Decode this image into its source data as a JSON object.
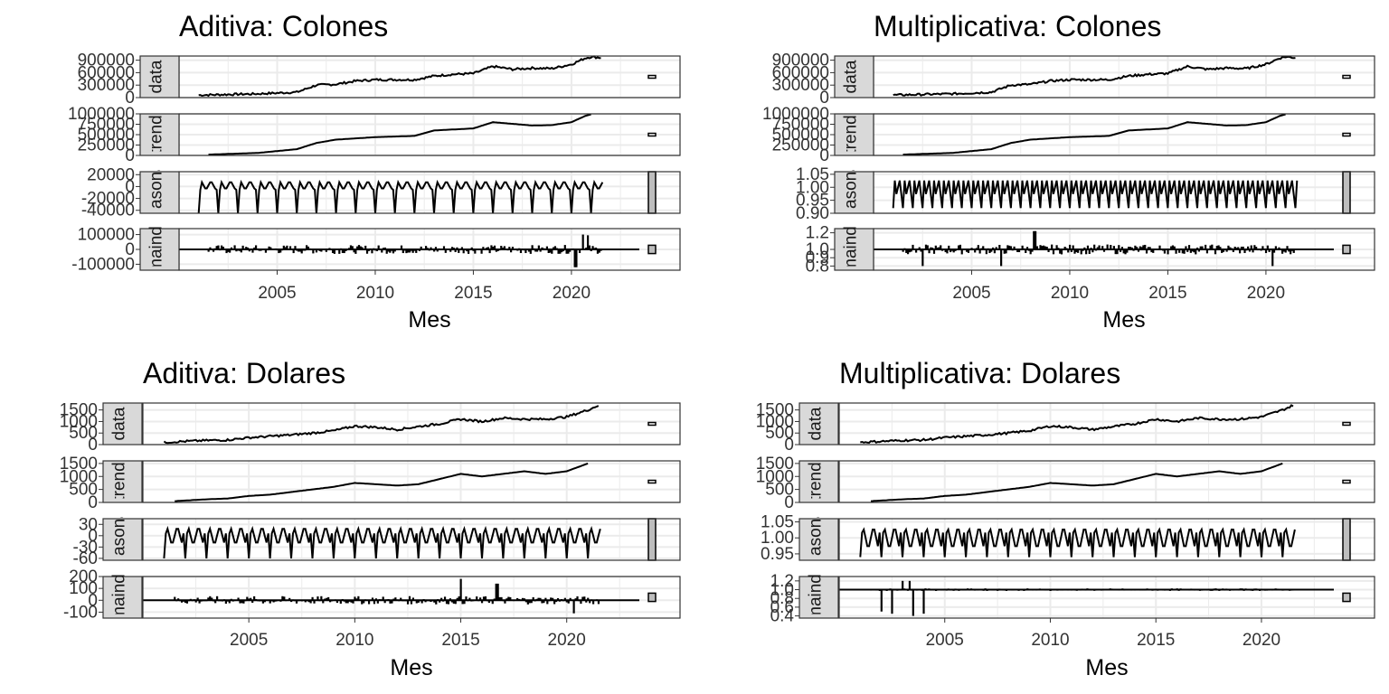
{
  "chart_data": [
    {
      "title": "Aditiva: Colones",
      "xlabel": "Mes",
      "type": "line",
      "xlim": [
        2000,
        2023
      ],
      "xticks": [
        "2005",
        "2010",
        "2015",
        "2020"
      ],
      "kind": "additive",
      "facets": [
        {
          "strip": "data",
          "ylim": [
            0,
            1000000
          ],
          "yticks": [
            "900000",
            "600000",
            "300000",
            "0"
          ],
          "anchors": [
            [
              2001,
              60000
            ],
            [
              2004,
              90000
            ],
            [
              2006,
              130000
            ],
            [
              2007,
              300000
            ],
            [
              2008,
              320000
            ],
            [
              2009,
              400000
            ],
            [
              2010,
              430000
            ],
            [
              2012,
              430000
            ],
            [
              2013,
              520000
            ],
            [
              2014,
              560000
            ],
            [
              2015,
              580000
            ],
            [
              2016,
              750000
            ],
            [
              2017,
              680000
            ],
            [
              2018,
              710000
            ],
            [
              2019,
              700000
            ],
            [
              2020,
              800000
            ],
            [
              2020.7,
              950000
            ],
            [
              2021,
              980000
            ],
            [
              2021.5,
              960000
            ]
          ]
        },
        {
          "strip": "trend",
          "ylim": [
            0,
            1000000
          ],
          "yticks": [
            "1000000",
            "750000",
            "500000",
            "250000",
            "0"
          ],
          "anchors": [
            [
              2001.5,
              20000
            ],
            [
              2004,
              60000
            ],
            [
              2006,
              150000
            ],
            [
              2007,
              300000
            ],
            [
              2008,
              380000
            ],
            [
              2010,
              440000
            ],
            [
              2012,
              470000
            ],
            [
              2013,
              600000
            ],
            [
              2015,
              650000
            ],
            [
              2016,
              800000
            ],
            [
              2017,
              760000
            ],
            [
              2018,
              720000
            ],
            [
              2019,
              730000
            ],
            [
              2020,
              800000
            ],
            [
              2020.7,
              950000
            ],
            [
              2021,
              990000
            ]
          ]
        },
        {
          "strip": "seasonal",
          "ylim": [
            -45000,
            25000
          ],
          "yticks": [
            "20000",
            "0",
            "-20000",
            "-40000"
          ],
          "season": {
            "period": 1,
            "amp_pos": 12000,
            "amp_neg": -45000,
            "center": 2000
          }
        },
        {
          "strip": "remainder",
          "ylim": [
            -140000,
            140000
          ],
          "yticks": [
            "100000",
            "0",
            "-100000"
          ],
          "noise": {
            "amp": 30000,
            "spikes": [
              [
                2020.2,
                -120000
              ],
              [
                2020.6,
                100000
              ],
              [
                2020.8,
                95000
              ]
            ]
          }
        }
      ]
    },
    {
      "title": "Multiplicativa: Colones",
      "xlabel": "Mes",
      "type": "line",
      "xlim": [
        2000,
        2023
      ],
      "xticks": [
        "2005",
        "2010",
        "2015",
        "2020"
      ],
      "kind": "multiplicative",
      "facets": [
        {
          "strip": "data",
          "ylim": [
            0,
            1000000
          ],
          "yticks": [
            "900000",
            "600000",
            "300000",
            "0"
          ],
          "anchors": [
            [
              2001,
              60000
            ],
            [
              2004,
              90000
            ],
            [
              2006,
              130000
            ],
            [
              2007,
              300000
            ],
            [
              2008,
              320000
            ],
            [
              2009,
              400000
            ],
            [
              2010,
              430000
            ],
            [
              2012,
              430000
            ],
            [
              2013,
              520000
            ],
            [
              2014,
              560000
            ],
            [
              2015,
              580000
            ],
            [
              2016,
              750000
            ],
            [
              2017,
              680000
            ],
            [
              2018,
              710000
            ],
            [
              2019,
              700000
            ],
            [
              2020,
              800000
            ],
            [
              2020.7,
              950000
            ],
            [
              2021,
              980000
            ],
            [
              2021.5,
              960000
            ]
          ]
        },
        {
          "strip": "trend",
          "ylim": [
            0,
            1000000
          ],
          "yticks": [
            "1000000",
            "750000",
            "500000",
            "250000",
            "0"
          ],
          "anchors": [
            [
              2001.5,
              20000
            ],
            [
              2004,
              60000
            ],
            [
              2006,
              150000
            ],
            [
              2007,
              300000
            ],
            [
              2008,
              380000
            ],
            [
              2010,
              440000
            ],
            [
              2012,
              470000
            ],
            [
              2013,
              600000
            ],
            [
              2015,
              650000
            ],
            [
              2016,
              800000
            ],
            [
              2017,
              760000
            ],
            [
              2018,
              720000
            ],
            [
              2019,
              730000
            ],
            [
              2020,
              800000
            ],
            [
              2020.7,
              950000
            ],
            [
              2021,
              990000
            ]
          ]
        },
        {
          "strip": "seasonal",
          "ylim": [
            0.9,
            1.06
          ],
          "yticks": [
            "1.05",
            "1.00",
            "0.95",
            "0.90"
          ],
          "season": {
            "period": 0.5,
            "amp_pos": 1.05,
            "amp_neg": 0.92,
            "center": 1.0
          }
        },
        {
          "strip": "remainder",
          "ylim": [
            0.75,
            1.25
          ],
          "yticks": [
            "1.2",
            "1.0",
            "0.9",
            "0.8"
          ],
          "noise": {
            "amp": 0.06,
            "spikes": [
              [
                2002.5,
                0.8
              ],
              [
                2006.5,
                0.8
              ],
              [
                2008.2,
                1.22
              ],
              [
                2020.3,
                0.8
              ]
            ]
          }
        }
      ]
    },
    {
      "title": "Aditiva: Dolares",
      "xlabel": "Mes",
      "type": "line",
      "xlim": [
        2000,
        2023
      ],
      "xticks": [
        "2005",
        "2010",
        "2015",
        "2020"
      ],
      "kind": "additive",
      "facets": [
        {
          "strip": "data",
          "ylim": [
            0,
            1800
          ],
          "yticks": [
            "1500",
            "1000",
            "500",
            "0"
          ],
          "anchors": [
            [
              2001,
              100
            ],
            [
              2003,
              180
            ],
            [
              2004,
              200
            ],
            [
              2005,
              300
            ],
            [
              2007,
              420
            ],
            [
              2008,
              500
            ],
            [
              2009,
              600
            ],
            [
              2010,
              800
            ],
            [
              2011,
              750
            ],
            [
              2012,
              650
            ],
            [
              2013,
              780
            ],
            [
              2014,
              900
            ],
            [
              2015,
              1100
            ],
            [
              2016,
              1000
            ],
            [
              2017,
              1150
            ],
            [
              2018,
              1100
            ],
            [
              2019,
              1100
            ],
            [
              2020,
              1200
            ],
            [
              2021,
              1500
            ],
            [
              2021.5,
              1700
            ]
          ]
        },
        {
          "strip": "trend",
          "ylim": [
            0,
            1600
          ],
          "yticks": [
            "1500",
            "1000",
            "500",
            "0"
          ],
          "anchors": [
            [
              2001.5,
              50
            ],
            [
              2003,
              120
            ],
            [
              2004,
              150
            ],
            [
              2005,
              250
            ],
            [
              2006,
              300
            ],
            [
              2007,
              400
            ],
            [
              2008,
              500
            ],
            [
              2009,
              600
            ],
            [
              2010,
              750
            ],
            [
              2011,
              700
            ],
            [
              2012,
              650
            ],
            [
              2013,
              700
            ],
            [
              2014,
              900
            ],
            [
              2015,
              1100
            ],
            [
              2016,
              1000
            ],
            [
              2017,
              1100
            ],
            [
              2018,
              1200
            ],
            [
              2019,
              1100
            ],
            [
              2020,
              1200
            ],
            [
              2021,
              1500
            ]
          ]
        },
        {
          "strip": "seasonal",
          "ylim": [
            -65,
            45
          ],
          "yticks": [
            "30",
            "0",
            "-30",
            "-60"
          ],
          "season": {
            "period": 1,
            "amp_pos": 35,
            "amp_neg": -60,
            "center": 0
          }
        },
        {
          "strip": "remainder",
          "ylim": [
            -150,
            200
          ],
          "yticks": [
            "200",
            "100",
            "0",
            "-100"
          ],
          "noise": {
            "amp": 35,
            "spikes": [
              [
                2015,
                180
              ],
              [
                2016.7,
                140
              ],
              [
                2020.3,
                -110
              ]
            ]
          }
        }
      ]
    },
    {
      "title": "Multiplicativa: Dolares",
      "xlabel": "Mes",
      "type": "line",
      "xlim": [
        2000,
        2023
      ],
      "xticks": [
        "2005",
        "2010",
        "2015",
        "2020"
      ],
      "kind": "multiplicative",
      "facets": [
        {
          "strip": "data",
          "ylim": [
            0,
            1800
          ],
          "yticks": [
            "1500",
            "1000",
            "500",
            "0"
          ],
          "anchors": [
            [
              2001,
              100
            ],
            [
              2003,
              180
            ],
            [
              2004,
              200
            ],
            [
              2005,
              300
            ],
            [
              2007,
              420
            ],
            [
              2008,
              500
            ],
            [
              2009,
              600
            ],
            [
              2010,
              800
            ],
            [
              2011,
              750
            ],
            [
              2012,
              650
            ],
            [
              2013,
              780
            ],
            [
              2014,
              900
            ],
            [
              2015,
              1100
            ],
            [
              2016,
              1000
            ],
            [
              2017,
              1150
            ],
            [
              2018,
              1100
            ],
            [
              2019,
              1100
            ],
            [
              2020,
              1200
            ],
            [
              2021,
              1500
            ],
            [
              2021.5,
              1700
            ]
          ]
        },
        {
          "strip": "trend",
          "ylim": [
            0,
            1600
          ],
          "yticks": [
            "1500",
            "1000",
            "500",
            "0"
          ],
          "anchors": [
            [
              2001.5,
              50
            ],
            [
              2003,
              120
            ],
            [
              2004,
              150
            ],
            [
              2005,
              250
            ],
            [
              2006,
              300
            ],
            [
              2007,
              400
            ],
            [
              2008,
              500
            ],
            [
              2009,
              600
            ],
            [
              2010,
              750
            ],
            [
              2011,
              700
            ],
            [
              2012,
              650
            ],
            [
              2013,
              700
            ],
            [
              2014,
              900
            ],
            [
              2015,
              1100
            ],
            [
              2016,
              1000
            ],
            [
              2017,
              1100
            ],
            [
              2018,
              1200
            ],
            [
              2019,
              1100
            ],
            [
              2020,
              1200
            ],
            [
              2021,
              1500
            ]
          ]
        },
        {
          "strip": "seasonal",
          "ylim": [
            0.93,
            1.06
          ],
          "yticks": [
            "1.05",
            "1.00",
            "0.95"
          ],
          "season": {
            "period": 1,
            "amp_pos": 1.05,
            "amp_neg": 0.94,
            "center": 1.0
          }
        },
        {
          "strip": "remainder",
          "ylim": [
            0.35,
            1.3
          ],
          "yticks": [
            "1.2",
            "1.0",
            "0.8",
            "0.6",
            "0.4"
          ],
          "noise": {
            "amp": 0.03,
            "spikes": [
              [
                2002,
                0.5
              ],
              [
                2002.5,
                0.45
              ],
              [
                2003.5,
                0.4
              ],
              [
                2004,
                0.45
              ],
              [
                2003,
                1.2
              ],
              [
                2003.3,
                1.2
              ]
            ]
          }
        }
      ]
    }
  ]
}
